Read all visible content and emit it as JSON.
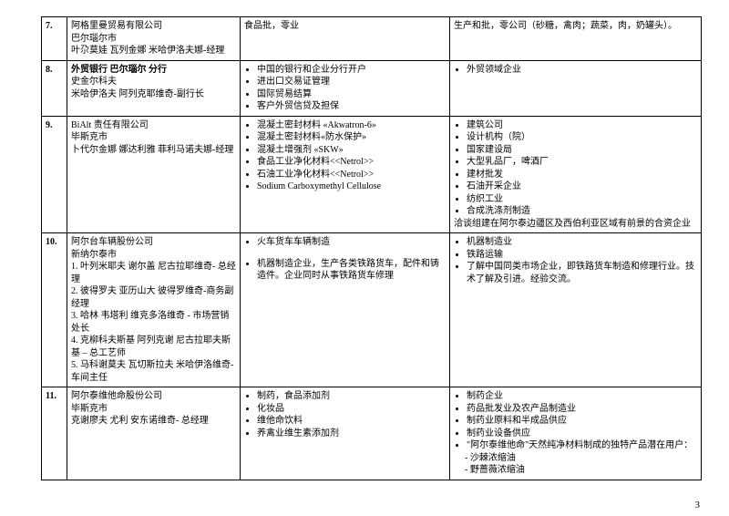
{
  "page_number": "3",
  "rows": [
    {
      "num": "7.",
      "col1_lines": [
        "阿格里曼贸易有限公司",
        "巴尔瑙尔市",
        "叶尕莫娃  瓦列金娜    米哈伊洛夫娜-经理"
      ],
      "col2_bullets": [],
      "col2_text": "食品批，零业",
      "col3_text": "生产和批，零公司（砂糖，禽肉；蔬菜，肉，奶罐头）。"
    },
    {
      "num": "8.",
      "col1_lines": [
        "史金尔科夫",
        "米哈伊洛夫  阿列克耶维奇-副行长"
      ],
      "col1_bold_first": "外贸银行  巴尔瑙尔 分行",
      "col2_bullets": [
        "中国的银行和企业分行开户",
        "进出口交易证管理",
        "国际贸易结算",
        "客户外贸信贷及担保"
      ],
      "col3_bullets": [
        "外贸领域企业"
      ]
    },
    {
      "num": "9.",
      "col1_lines": [
        "BiAlt 责任有限公司",
        "毕斯克市",
        "卜代尔金娜  娜达利雅     菲利马诺夫娜-经理"
      ],
      "col2_bullets": [
        "混凝土密封材料  «Akwatron-6»",
        "混凝土密封材料«防水保护»",
        "混凝土增强剂  «SKW»",
        "食品工业净化材料<<Netrol>>",
        "石油工业净化材料<<Netrol>>",
        "Sodium Carboxymethyl Cellulose"
      ],
      "col3_bullets": [
        "建筑公司",
        "设计机构（院）",
        "国家建设局",
        "大型乳品厂，啤酒厂",
        "建材批发",
        "石油开采企业",
        "纺织工业",
        "合成洗涤剂制造"
      ],
      "col3_tail": "洽谈组建在阿尔泰边疆区及西伯利亚区域有前景的合资企业"
    },
    {
      "num": "10.",
      "col1_lines": [
        "阿尔台车辆股份公司",
        "新纳尔泰市",
        "1.  叶列米耶夫  谢尔盖    尼古拉耶维奇- 总经理",
        "2. 彼得罗夫   亚历山大     彼得罗维奇-商务副经理",
        "3. 哈林  韦塔利     维克多洛维奇  -  市场营销处长",
        "4.  克柳科夫斯基  阿列克谢    尼古拉耶夫斯基 – 总工艺师",
        "5. 马科谢莫夫   瓦切斯拉夫     米哈伊洛维奇-车间主任"
      ],
      "col2_bullets": [
        "火车货车车辆制造"
      ],
      "col2_bullets_spaced": [
        "机器制造企业，生产各类铁路货车，配件和铸造件。企业同时从事铁路货车修理"
      ],
      "col3_bullets": [
        "机器制造业",
        "铁路运输",
        "了解中国同类市场企业，即铁路货车制造和修理行业。技术了解及引进。经验交流。"
      ]
    },
    {
      "num": "11.",
      "col1_lines": [
        "阿尔泰维他命股份公司",
        "毕斯克市",
        "克谢廖夫   尤利    安东诺维奇- 总经理"
      ],
      "col2_bullets": [
        "制药，食品添加剂",
        "化妆品",
        "维他命饮料",
        "养禽业维生素添加剂"
      ],
      "col3_bullets": [
        "制药企业",
        "药品批发业及农产品制造业",
        "制药业原料和半成品供应",
        "  制药业设备供应",
        "\"阿尔泰维他命\"天然纯净材料制成的独特产品潜在用户："
      ],
      "col3_dash": [
        "沙棘浓缩油",
        "野蔷薇浓缩油"
      ]
    }
  ]
}
